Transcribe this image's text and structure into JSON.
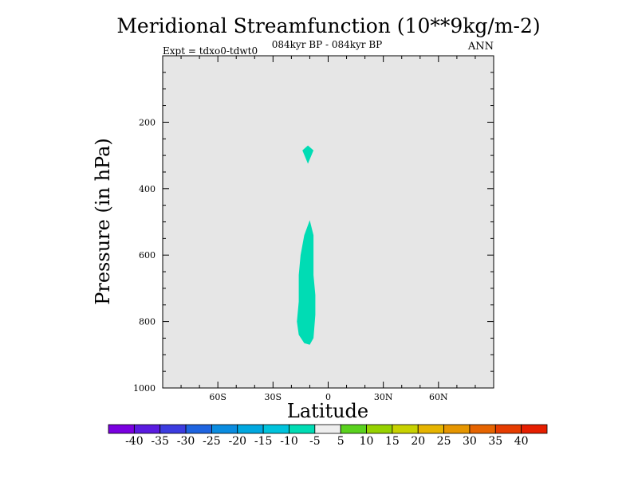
{
  "chart_data": {
    "type": "contour",
    "title": "Meridional Streamfunction (10**9kg/m-2)",
    "subtitle": "084kyr BP - 084kyr BP",
    "left_label": "Expt = tdxo0-tdwt0",
    "right_label": "ANN",
    "xlabel": "Latitude",
    "ylabel": "Pressure (in hPa)",
    "xlim": [
      -90,
      90
    ],
    "ylim": [
      1000,
      0
    ],
    "x_ticks": [
      {
        "value": -60,
        "label": "60S"
      },
      {
        "value": -30,
        "label": "30S"
      },
      {
        "value": 0,
        "label": "0"
      },
      {
        "value": 30,
        "label": "30N"
      },
      {
        "value": 60,
        "label": "60N"
      }
    ],
    "y_ticks": [
      {
        "value": 200,
        "label": "200"
      },
      {
        "value": 400,
        "label": "400"
      },
      {
        "value": 600,
        "label": "600"
      },
      {
        "value": 800,
        "label": "800"
      },
      {
        "value": 1000,
        "label": "1000"
      }
    ],
    "background_fill": "#e6e6e6",
    "filled_regions": [
      {
        "level_range": [
          -10,
          -5
        ],
        "color": "#00dcb4",
        "polygon": [
          [
            -11,
            270
          ],
          [
            -8,
            285
          ],
          [
            -11,
            325
          ],
          [
            -14,
            285
          ]
        ]
      },
      {
        "level_range": [
          -10,
          -5
        ],
        "color": "#00dcb4",
        "polygon": [
          [
            -10,
            495
          ],
          [
            -8,
            540
          ],
          [
            -8,
            600
          ],
          [
            -8,
            660
          ],
          [
            -7,
            720
          ],
          [
            -7,
            780
          ],
          [
            -8,
            850
          ],
          [
            -10,
            870
          ],
          [
            -13,
            865
          ],
          [
            -16,
            840
          ],
          [
            -17,
            800
          ],
          [
            -16,
            740
          ],
          [
            -16,
            660
          ],
          [
            -15,
            600
          ],
          [
            -13,
            540
          ]
        ]
      }
    ],
    "colorbar": {
      "levels": [
        "-40",
        "-35",
        "-30",
        "-25",
        "-20",
        "-15",
        "-10",
        "-5",
        "5",
        "10",
        "15",
        "20",
        "25",
        "30",
        "35",
        "40"
      ],
      "colors": [
        "#7a00e0",
        "#5a1be0",
        "#3c3ce0",
        "#1e64e0",
        "#0a8ce0",
        "#00a8e0",
        "#00c3dc",
        "#00dcb4",
        "#eeeeee",
        "#5ad21e",
        "#96d200",
        "#c8d200",
        "#e6b400",
        "#e69600",
        "#e66400",
        "#e63c00",
        "#e61e00"
      ]
    }
  }
}
